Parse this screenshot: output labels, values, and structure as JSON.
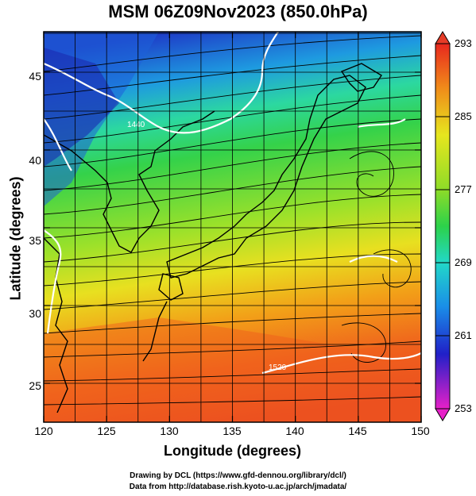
{
  "title": "MSM 06Z09Nov2023 (850.0hPa)",
  "axes": {
    "xlabel": "Longitude (degrees)",
    "ylabel": "Latitude  (degrees)",
    "xticks": [
      "120",
      "125",
      "130",
      "135",
      "140",
      "145",
      "150"
    ],
    "yticks": [
      "25",
      "30",
      "35",
      "40",
      "45"
    ]
  },
  "colorbar": {
    "ticks": [
      "293",
      "285",
      "277",
      "269",
      "261",
      "253"
    ]
  },
  "credits": {
    "line1": "Drawing by DCL (https://www.gfd-dennou.org/library/dcl/)",
    "line2": "Data from http://database.rish.kyoto-u.ac.jp/arch/jmadata/"
  },
  "contour_labels": [
    "1440",
    "1520"
  ],
  "chart_data": {
    "type": "heatmap",
    "title": "MSM 06Z09Nov2023 (850.0hPa)",
    "xlabel": "Longitude (degrees)",
    "ylabel": "Latitude  (degrees)",
    "xlim": [
      120,
      150
    ],
    "ylim": [
      22.5,
      47.6
    ],
    "colorbar_range": [
      253,
      293
    ],
    "colorbar_ticks": [
      293,
      285,
      277,
      269,
      261,
      253
    ],
    "grid": true,
    "overlays": [
      "streamlines",
      "white geopotential height contours",
      "coastlines"
    ]
  }
}
